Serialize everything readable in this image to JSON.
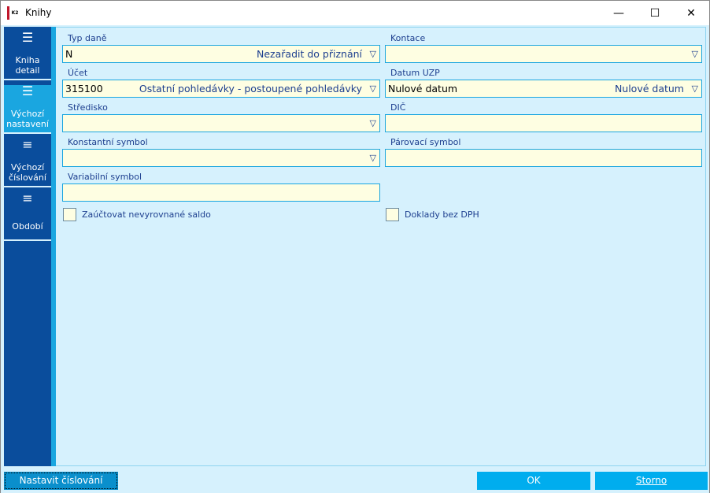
{
  "window": {
    "title": "Knihy",
    "logo_text": "K2"
  },
  "sidebar": {
    "items": [
      {
        "label1": "Kniha",
        "label2": "detail",
        "selected": false
      },
      {
        "label1": "Výchozí",
        "label2": "nastavení",
        "selected": true
      },
      {
        "label1": "Výchozí",
        "label2": "číslování",
        "selected": false
      },
      {
        "label1": "Období",
        "label2": "",
        "selected": false
      }
    ]
  },
  "form": {
    "typ_dane": {
      "label": "Typ daně",
      "value": "N",
      "description": "Nezařadit do přiznání"
    },
    "kontace": {
      "label": "Kontace",
      "value": ""
    },
    "ucet": {
      "label": "Účet",
      "value": "315100",
      "description": "Ostatní pohledávky - postoupené pohledávky"
    },
    "datum_uzp": {
      "label": "Datum UZP",
      "value": "Nulové datum",
      "description": "Nulové datum"
    },
    "stredisko": {
      "label": "Středisko",
      "value": ""
    },
    "dic": {
      "label": "DIČ",
      "value": ""
    },
    "konstantni_symbol": {
      "label": "Konstantní symbol",
      "value": ""
    },
    "parovaci_symbol": {
      "label": "Párovací symbol",
      "value": ""
    },
    "variabilni_symbol": {
      "label": "Variabilní symbol",
      "value": ""
    },
    "zauctovat": {
      "label": "Zaúčtovat nevyrovnané saldo",
      "checked": false
    },
    "doklady_bez_dph": {
      "label": "Doklady bez DPH",
      "checked": false
    }
  },
  "buttons": {
    "nastavit": "Nastavit číslování",
    "ok": "OK",
    "storno": "Storno"
  },
  "colors": {
    "sidebar": "#0a4d9c",
    "accent": "#00adee",
    "input_bg": "#fefee2",
    "background": "#d6f1fd"
  }
}
